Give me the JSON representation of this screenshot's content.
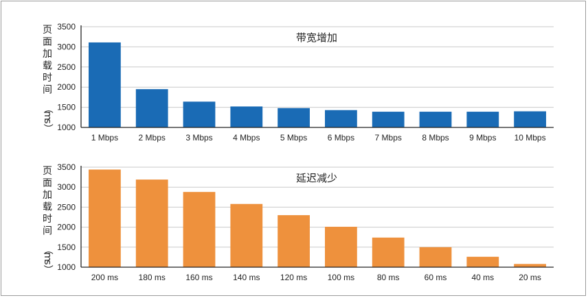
{
  "colors": {
    "chart1_bar": "#1a6bb5",
    "chart2_bar": "#ee913d",
    "grid": "#c9c9c9",
    "axis": "#222222"
  },
  "chart_data": [
    {
      "type": "bar",
      "title": "带宽增加",
      "ylabel": "页面加载时间（ms）",
      "xlabel": "",
      "categories": [
        "1 Mbps",
        "2 Mbps",
        "3 Mbps",
        "4 Mbps",
        "5 Mbps",
        "6 Mbps",
        "7 Mbps",
        "8 Mbps",
        "9 Mbps",
        "10 Mbps"
      ],
      "values": [
        3110,
        1950,
        1640,
        1520,
        1480,
        1430,
        1390,
        1390,
        1390,
        1400
      ],
      "ylim": [
        1000,
        3500
      ],
      "yticks": [
        1000,
        1500,
        2000,
        2500,
        3000,
        3500
      ],
      "grid": true
    },
    {
      "type": "bar",
      "title": "延迟减少",
      "ylabel": "页面加载时间（ms）",
      "xlabel": "",
      "categories": [
        "200 ms",
        "180 ms",
        "160 ms",
        "140 ms",
        "120 ms",
        "100 ms",
        "80 ms",
        "60 ms",
        "40 ms",
        "20 ms"
      ],
      "values": [
        3440,
        3190,
        2880,
        2580,
        2300,
        2010,
        1740,
        1500,
        1260,
        1080
      ],
      "ylim": [
        1000,
        3500
      ],
      "yticks": [
        1000,
        1500,
        2000,
        2500,
        3000,
        3500
      ],
      "grid": true
    }
  ]
}
